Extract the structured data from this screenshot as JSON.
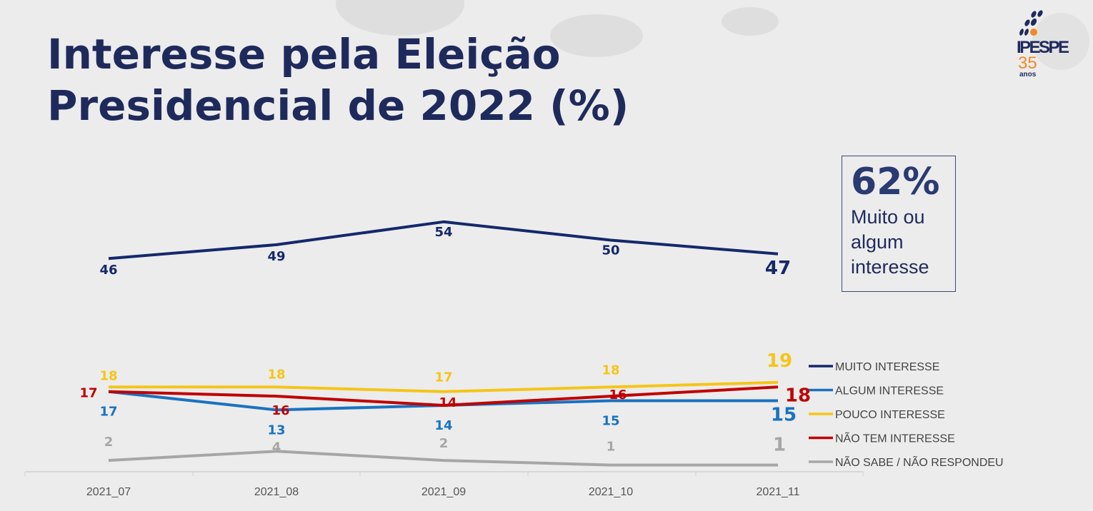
{
  "title_line1": "Interesse pela Eleição",
  "title_line2": "Presidencial de 2022 (%)",
  "callout": {
    "value": "62%",
    "line1": "Muito ou",
    "line2": "algum",
    "line3": "interesse"
  },
  "logo": {
    "name": "IPESPE",
    "number": "35",
    "sub": "anos"
  },
  "chart_data": {
    "type": "line",
    "categories": [
      "2021_07",
      "2021_08",
      "2021_09",
      "2021_10",
      "2021_11"
    ],
    "series": [
      {
        "name": "MUITO INTERESSE",
        "color": "#15286b",
        "values": [
          46,
          49,
          54,
          50,
          47
        ]
      },
      {
        "name": "ALGUM INTERESSE",
        "color": "#1a72c0",
        "values": [
          17,
          13,
          14,
          15,
          15
        ]
      },
      {
        "name": "POUCO INTERESSE",
        "color": "#f5c518",
        "values": [
          18,
          18,
          17,
          18,
          19
        ]
      },
      {
        "name": "NÃO TEM INTERESSE",
        "color": "#c00000",
        "values": [
          17,
          16,
          14,
          16,
          18
        ]
      },
      {
        "name": "NÃO SABE / NÃO RESPONDEU",
        "color": "#a6a6a6",
        "values": [
          2,
          4,
          2,
          1,
          1
        ]
      }
    ],
    "legend": "right",
    "grid": false
  }
}
